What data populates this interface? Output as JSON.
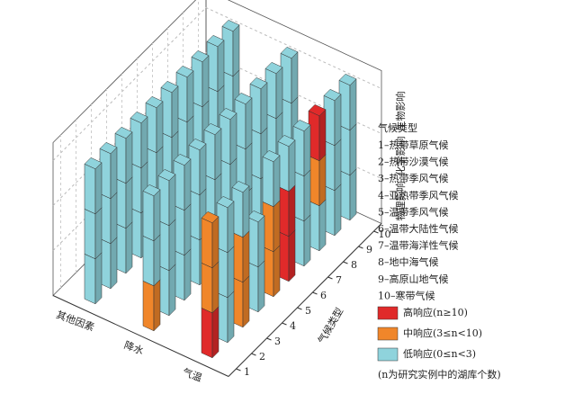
{
  "chart_data": {
    "type": "bar3d",
    "factors": [
      "其他因素",
      "降水",
      "气温"
    ],
    "depth_label": "气候类型",
    "depth_ticks": [
      1,
      2,
      3,
      4,
      5,
      6,
      7,
      8,
      9,
      10
    ],
    "z_labels": [
      "物理影响",
      "化学影响",
      "生物影响"
    ],
    "legend": [
      {
        "label": "高响应(n≥10)",
        "color": "#e02a2a"
      },
      {
        "label": "中响应(3≤n<10)",
        "color": "#f0862a"
      },
      {
        "label": "低响应(0≤n<3)",
        "color": "#8fd3dc"
      }
    ],
    "legend_note": "(n为研究实例中的湖库个数)",
    "climate_title": "气候类型",
    "climate_types": [
      "1–热带草原气候",
      "2–热带沙漠气候",
      "3–热带季风气候",
      "4–亚热带季风气候",
      "5–温带季风气候",
      "6–温带大陆性气候",
      "7–温带海洋性气候",
      "8–地中海气候",
      "9–高原山地气候",
      "10–寒带气候"
    ],
    "levels": [
      [
        [
          2,
          2,
          2
        ],
        [
          2,
          2,
          2
        ],
        [
          2,
          2,
          2
        ],
        [
          2,
          2,
          2
        ],
        [
          2,
          2,
          2
        ],
        [
          2,
          2,
          2
        ],
        [
          2,
          2,
          2
        ],
        [
          2,
          2,
          2
        ],
        [
          2,
          2,
          2
        ],
        [
          2,
          2,
          2
        ]
      ],
      [
        [
          1,
          2,
          2
        ],
        [
          2,
          2,
          2
        ],
        [
          2,
          2,
          2
        ],
        [
          2,
          2,
          2
        ],
        [
          2,
          2,
          2
        ],
        [
          2,
          2,
          2
        ],
        [
          2,
          2,
          2
        ],
        [
          2,
          2,
          2
        ],
        [
          2,
          2,
          2
        ],
        [
          2,
          2,
          2
        ]
      ],
      [
        [
          0,
          1,
          1
        ],
        [
          2,
          2,
          2
        ],
        [
          1,
          1,
          2
        ],
        [
          2,
          2,
          null
        ],
        [
          1,
          1,
          2
        ],
        [
          0,
          0,
          2
        ],
        [
          2,
          2,
          2
        ],
        [
          2,
          1,
          0
        ],
        [
          2,
          2,
          2
        ],
        [
          2,
          2,
          2
        ]
      ]
    ]
  }
}
